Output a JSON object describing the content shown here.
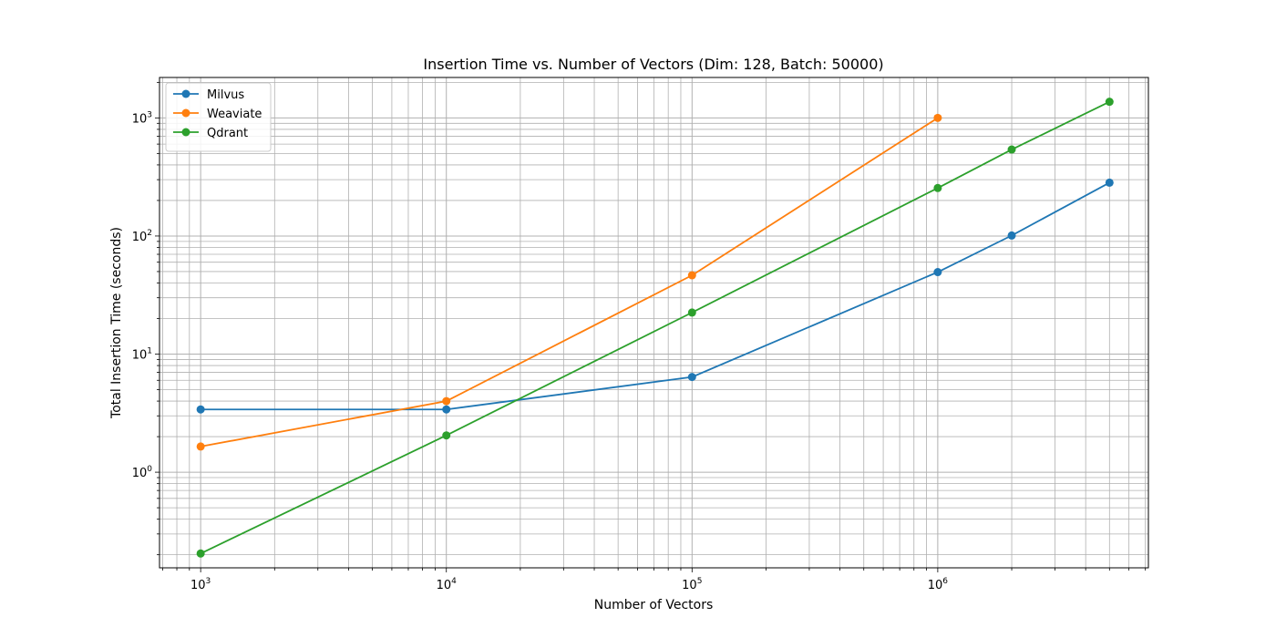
{
  "chart_data": {
    "type": "line",
    "title": "Insertion Time vs. Number of Vectors (Dim: 128, Batch: 50000)",
    "xlabel": "Number of Vectors",
    "ylabel": "Total Insertion Time (seconds)",
    "xscale": "log",
    "yscale": "log",
    "xlim": [
      680,
      7200000
    ],
    "ylim": [
      0.155,
      2200
    ],
    "grid": true,
    "grid_minor": true,
    "legend_position": "top-left",
    "x_ticks": [
      {
        "value": 1000,
        "base": "10",
        "exp": "3"
      },
      {
        "value": 10000,
        "base": "10",
        "exp": "4"
      },
      {
        "value": 100000,
        "base": "10",
        "exp": "5"
      },
      {
        "value": 1000000,
        "base": "10",
        "exp": "6"
      }
    ],
    "y_ticks": [
      {
        "value": 1,
        "base": "10",
        "exp": "0"
      },
      {
        "value": 10,
        "base": "10",
        "exp": "1"
      },
      {
        "value": 100,
        "base": "10",
        "exp": "2"
      },
      {
        "value": 1000,
        "base": "10",
        "exp": "3"
      }
    ],
    "series": [
      {
        "name": "Milvus",
        "color": "#1f77b4",
        "x": [
          1000,
          10000,
          100000,
          1000000,
          2000000,
          5000000
        ],
        "y": [
          3.4,
          3.4,
          6.4,
          49.5,
          101,
          283
        ]
      },
      {
        "name": "Weaviate",
        "color": "#ff7f0e",
        "x": [
          1000,
          10000,
          100000,
          1000000
        ],
        "y": [
          1.65,
          4.0,
          46.5,
          1000
        ]
      },
      {
        "name": "Qdrant",
        "color": "#2ca02c",
        "x": [
          1000,
          10000,
          100000,
          1000000,
          2000000,
          5000000
        ],
        "y": [
          0.205,
          2.05,
          22.5,
          255,
          540,
          1370
        ]
      }
    ]
  }
}
